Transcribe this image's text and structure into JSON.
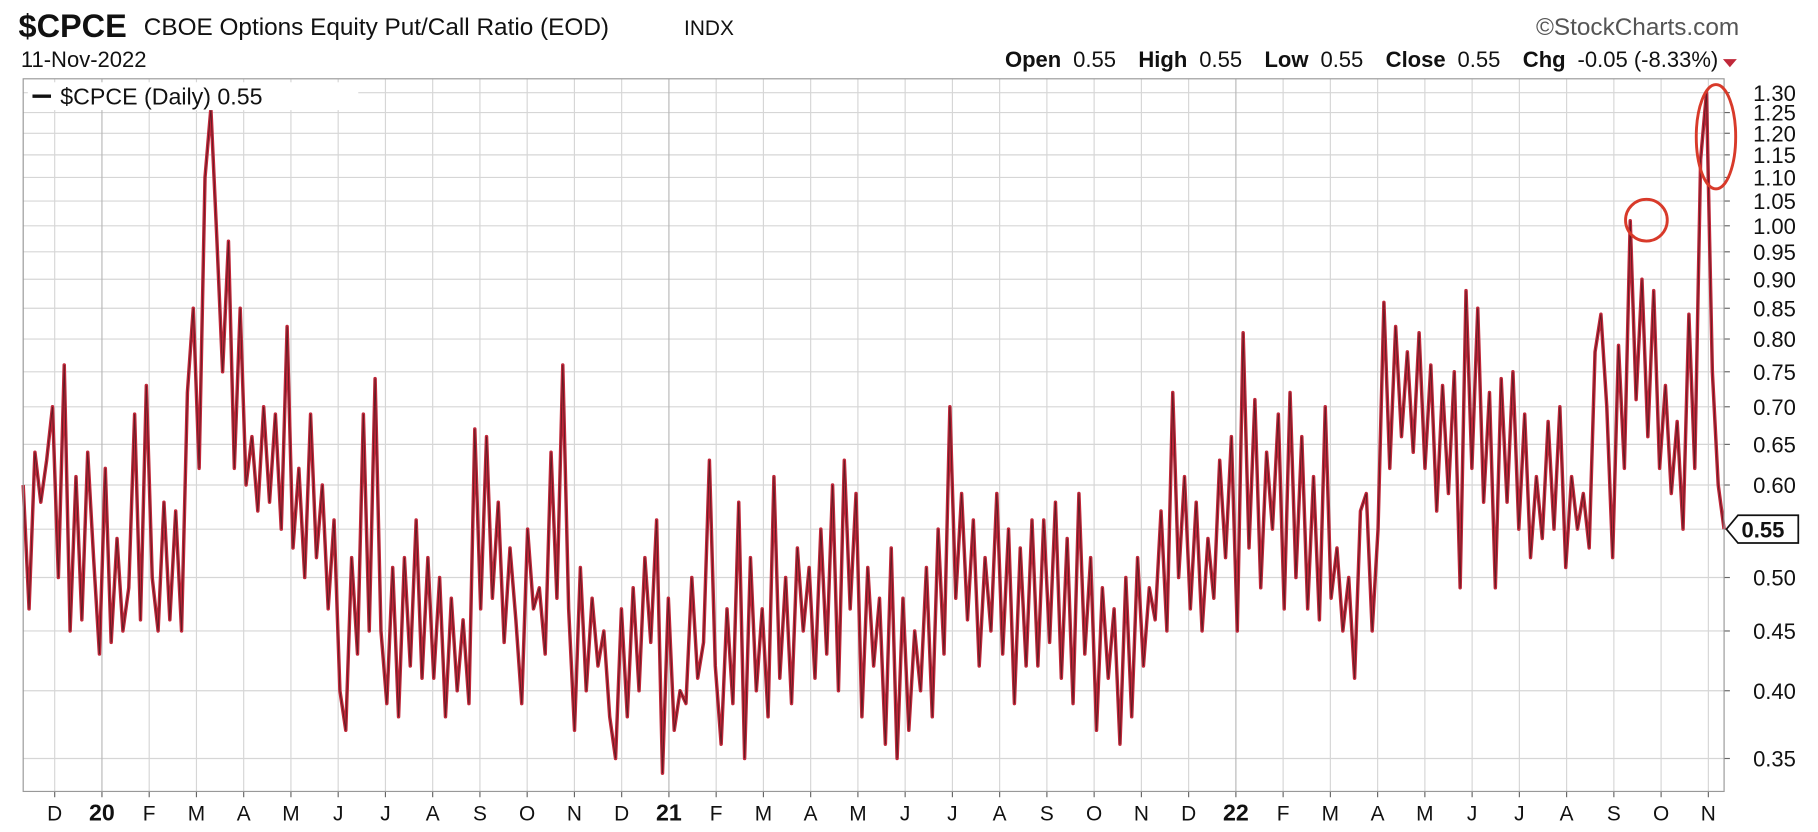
{
  "chart_data": {
    "type": "line",
    "symbol": "$CPCE",
    "title": "CBOE Options Equity Put/Call Ratio (EOD)",
    "exchange": "INDX",
    "source": "©StockCharts.com",
    "date": "11-Nov-2022",
    "quote": [
      {
        "label": "Open",
        "value": "0.55"
      },
      {
        "label": "High",
        "value": "0.55"
      },
      {
        "label": "Low",
        "value": "0.55"
      },
      {
        "label": "Close",
        "value": "0.55"
      },
      {
        "label": "Chg",
        "value": "-0.05 (-8.33%)"
      }
    ],
    "x_labels": [
      "D",
      "20",
      "F",
      "M",
      "A",
      "M",
      "J",
      "J",
      "A",
      "S",
      "O",
      "N",
      "D",
      "21",
      "F",
      "M",
      "A",
      "M",
      "J",
      "J",
      "A",
      "S",
      "O",
      "N",
      "D",
      "22",
      "F",
      "M",
      "A",
      "M",
      "J",
      "J",
      "A",
      "S",
      "O",
      "N"
    ],
    "log_scale": true,
    "grid": true,
    "legend": "top-left",
    "ylim": [
      0.328,
      1.336
    ],
    "yticks": [
      0.35,
      {
        "value": 0.4,
        "label": "0.40"
      },
      0.45,
      {
        "value": 0.5,
        "label": "0.50"
      },
      0.55,
      {
        "value": 0.6,
        "label": "0.60"
      },
      0.65,
      {
        "value": 0.7,
        "label": "0.70"
      },
      0.75,
      {
        "value": 0.8,
        "label": "0.80"
      },
      0.85,
      {
        "value": 0.9,
        "label": "0.90"
      },
      0.95,
      {
        "value": 1.0,
        "label": "1.00"
      },
      1.05,
      {
        "value": 1.1,
        "label": "1.10"
      },
      1.15,
      {
        "value": 1.2,
        "label": "1.20"
      },
      1.25,
      {
        "value": 1.3,
        "label": "1.30"
      }
    ],
    "series": [
      {
        "name": "$CPCE (Daily) 0.55",
        "color": "#c0283a",
        "values": [
          0.6,
          0.47,
          0.64,
          0.58,
          0.63,
          0.7,
          0.5,
          0.76,
          0.45,
          0.61,
          0.46,
          0.64,
          0.52,
          0.43,
          0.62,
          0.44,
          0.54,
          0.45,
          0.49,
          0.69,
          0.46,
          0.73,
          0.5,
          0.45,
          0.58,
          0.46,
          0.57,
          0.45,
          0.72,
          0.85,
          0.62,
          1.1,
          1.26,
          0.98,
          0.75,
          0.97,
          0.62,
          0.85,
          0.6,
          0.66,
          0.57,
          0.7,
          0.58,
          0.69,
          0.55,
          0.82,
          0.53,
          0.62,
          0.5,
          0.69,
          0.52,
          0.6,
          0.47,
          0.56,
          0.4,
          0.37,
          0.52,
          0.43,
          0.69,
          0.45,
          0.74,
          0.45,
          0.39,
          0.51,
          0.38,
          0.52,
          0.42,
          0.56,
          0.41,
          0.52,
          0.41,
          0.5,
          0.38,
          0.48,
          0.4,
          0.46,
          0.39,
          0.67,
          0.47,
          0.66,
          0.48,
          0.58,
          0.44,
          0.53,
          0.46,
          0.39,
          0.55,
          0.47,
          0.49,
          0.43,
          0.64,
          0.48,
          0.76,
          0.47,
          0.37,
          0.51,
          0.4,
          0.48,
          0.42,
          0.45,
          0.38,
          0.35,
          0.47,
          0.38,
          0.49,
          0.4,
          0.52,
          0.44,
          0.56,
          0.34,
          0.48,
          0.37,
          0.4,
          0.39,
          0.5,
          0.41,
          0.44,
          0.63,
          0.42,
          0.36,
          0.47,
          0.39,
          0.58,
          0.35,
          0.52,
          0.4,
          0.47,
          0.38,
          0.61,
          0.41,
          0.5,
          0.39,
          0.53,
          0.45,
          0.51,
          0.41,
          0.55,
          0.43,
          0.6,
          0.4,
          0.63,
          0.47,
          0.59,
          0.38,
          0.51,
          0.42,
          0.48,
          0.36,
          0.53,
          0.35,
          0.48,
          0.37,
          0.45,
          0.4,
          0.51,
          0.38,
          0.55,
          0.43,
          0.7,
          0.48,
          0.59,
          0.46,
          0.56,
          0.42,
          0.52,
          0.45,
          0.59,
          0.43,
          0.55,
          0.39,
          0.53,
          0.42,
          0.56,
          0.42,
          0.56,
          0.44,
          0.58,
          0.41,
          0.54,
          0.39,
          0.59,
          0.43,
          0.52,
          0.37,
          0.49,
          0.41,
          0.47,
          0.36,
          0.5,
          0.38,
          0.52,
          0.42,
          0.49,
          0.46,
          0.57,
          0.45,
          0.72,
          0.5,
          0.61,
          0.47,
          0.58,
          0.45,
          0.54,
          0.48,
          0.63,
          0.52,
          0.66,
          0.45,
          0.81,
          0.53,
          0.71,
          0.49,
          0.64,
          0.55,
          0.69,
          0.47,
          0.72,
          0.5,
          0.66,
          0.47,
          0.61,
          0.46,
          0.7,
          0.48,
          0.53,
          0.45,
          0.5,
          0.41,
          0.57,
          0.59,
          0.45,
          0.55,
          0.86,
          0.62,
          0.82,
          0.66,
          0.78,
          0.64,
          0.81,
          0.62,
          0.76,
          0.57,
          0.73,
          0.59,
          0.75,
          0.49,
          0.88,
          0.62,
          0.85,
          0.58,
          0.72,
          0.49,
          0.74,
          0.58,
          0.75,
          0.55,
          0.69,
          0.52,
          0.61,
          0.54,
          0.68,
          0.55,
          0.7,
          0.51,
          0.61,
          0.55,
          0.59,
          0.53,
          0.78,
          0.84,
          0.7,
          0.52,
          0.79,
          0.62,
          1.01,
          0.71,
          0.9,
          0.66,
          0.88,
          0.62,
          0.73,
          0.59,
          0.68,
          0.55,
          0.84,
          0.62,
          1.14,
          1.3,
          0.75,
          0.6,
          0.55
        ]
      }
    ]
  }
}
